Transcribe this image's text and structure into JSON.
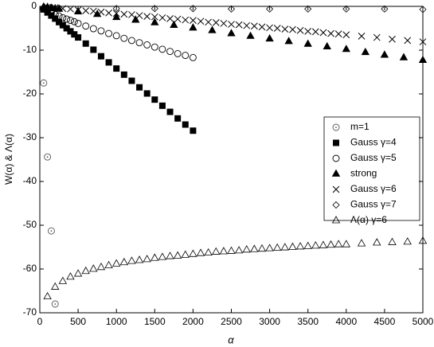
{
  "chart_data": {
    "type": "scatter",
    "xlabel": "α",
    "ylabel": "W(α) & Λ(α)",
    "xlim": [
      0,
      5000
    ],
    "ylim": [
      -70,
      0
    ],
    "xticks": [
      0,
      500,
      1000,
      1500,
      2000,
      2500,
      3000,
      3500,
      4000,
      4500,
      5000
    ],
    "yticks": [
      -70,
      -60,
      -50,
      -40,
      -30,
      -20,
      -10,
      0
    ],
    "grid": false,
    "legend": "right",
    "series": [
      {
        "name": "m=1",
        "marker": "circle-dot",
        "color": "#555555",
        "x": [
          50,
          100,
          150,
          200
        ],
        "values": [
          -17.5,
          -34.4,
          -51.3,
          -68
        ]
      },
      {
        "name": "Gauss γ=4",
        "marker": "square",
        "color": "#000000",
        "x": [
          50,
          100,
          150,
          200,
          250,
          300,
          350,
          400,
          450,
          500,
          600,
          700,
          800,
          900,
          1000,
          1100,
          1200,
          1300,
          1400,
          1500,
          1600,
          1700,
          1800,
          1900,
          2000
        ],
        "values": [
          -0.7,
          -1.4,
          -2.1,
          -2.8,
          -3.6,
          -4.3,
          -5,
          -5.7,
          -6.4,
          -7.1,
          -8.5,
          -9.9,
          -11.4,
          -12.8,
          -14.2,
          -15.6,
          -17,
          -18.5,
          -19.9,
          -21.3,
          -22.7,
          -24.1,
          -25.6,
          -27,
          -28.4
        ]
      },
      {
        "name": "Gauss γ=5",
        "marker": "circle",
        "color": "#000000",
        "x": [
          50,
          100,
          150,
          200,
          250,
          300,
          350,
          400,
          450,
          500,
          600,
          700,
          800,
          900,
          1000,
          1100,
          1200,
          1300,
          1400,
          1500,
          1600,
          1700,
          1800,
          1900,
          2000
        ],
        "values": [
          -0.6,
          -1.1,
          -1.5,
          -1.9,
          -2.2,
          -2.6,
          -2.9,
          -3.2,
          -3.5,
          -3.9,
          -4.5,
          -5.1,
          -5.6,
          -6.2,
          -6.7,
          -7.3,
          -7.8,
          -8.3,
          -8.8,
          -9.3,
          -9.8,
          -10.3,
          -10.8,
          -11.2,
          -11.7
        ]
      },
      {
        "name": "strong",
        "marker": "triangle",
        "color": "#000000",
        "x": [
          50,
          100,
          150,
          200,
          250,
          500,
          750,
          1000,
          1250,
          1500,
          1750,
          2000,
          2250,
          2500,
          2750,
          3000,
          3250,
          3500,
          3750,
          4000,
          4250,
          4500,
          4750,
          5000
        ],
        "values": [
          -0.1,
          -0.2,
          -0.4,
          -0.5,
          -0.6,
          -1.2,
          -1.8,
          -2.5,
          -3.1,
          -3.7,
          -4.3,
          -4.9,
          -5.5,
          -6.2,
          -6.8,
          -7.4,
          -8,
          -8.6,
          -9.2,
          -9.8,
          -10.5,
          -11.1,
          -11.7,
          -12.3
        ]
      },
      {
        "name": "Gauss γ=6",
        "marker": "x",
        "color": "#000000",
        "x": [
          100,
          200,
          300,
          400,
          500,
          600,
          700,
          800,
          900,
          1000,
          1100,
          1200,
          1300,
          1400,
          1500,
          1600,
          1700,
          1800,
          1900,
          2000,
          2100,
          2200,
          2300,
          2400,
          2500,
          2600,
          2700,
          2800,
          2900,
          3000,
          3100,
          3200,
          3300,
          3400,
          3500,
          3600,
          3700,
          3800,
          3900,
          4000,
          4200,
          4400,
          4600,
          4800,
          5000
        ],
        "values": [
          -0.2,
          -0.3,
          -0.5,
          -0.6,
          -0.8,
          -1,
          -1.1,
          -1.3,
          -1.5,
          -1.6,
          -1.8,
          -1.9,
          -2.1,
          -2.3,
          -2.4,
          -2.6,
          -2.8,
          -2.9,
          -3.1,
          -3.2,
          -3.4,
          -3.6,
          -3.7,
          -3.9,
          -4.1,
          -4.2,
          -4.4,
          -4.5,
          -4.7,
          -4.9,
          -5,
          -5.2,
          -5.3,
          -5.5,
          -5.7,
          -5.8,
          -6,
          -6.2,
          -6.3,
          -6.5,
          -6.8,
          -7.1,
          -7.5,
          -7.8,
          -8.1
        ]
      },
      {
        "name": "Gauss γ=7",
        "marker": "diamond",
        "color": "#000000",
        "x": [
          50,
          100,
          1000,
          1500,
          2000,
          2500,
          3000,
          3500,
          4000,
          4500,
          5000
        ],
        "values": [
          -0.3,
          -0.4,
          -0.5,
          -0.5,
          -0.5,
          -0.6,
          -0.6,
          -0.6,
          -0.6,
          -0.6,
          -0.7
        ]
      },
      {
        "name": "Λ(α) γ=6",
        "marker": "triangle-open",
        "color": "#000000",
        "x": [
          100,
          200,
          300,
          400,
          500,
          600,
          700,
          800,
          900,
          1000,
          1100,
          1200,
          1300,
          1400,
          1500,
          1600,
          1700,
          1800,
          1900,
          2000,
          2100,
          2200,
          2300,
          2400,
          2500,
          2600,
          2700,
          2800,
          2900,
          3000,
          3100,
          3200,
          3300,
          3400,
          3500,
          3600,
          3700,
          3800,
          3900,
          4000,
          4200,
          4400,
          4600,
          4800,
          5000
        ],
        "values": [
          -66.3,
          -64.1,
          -62.8,
          -61.8,
          -61.1,
          -60.5,
          -60,
          -59.6,
          -59.2,
          -58.8,
          -58.5,
          -58.2,
          -58,
          -57.8,
          -57.5,
          -57.3,
          -57.1,
          -57,
          -56.8,
          -56.6,
          -56.4,
          -56.3,
          -56.1,
          -56,
          -55.9,
          -55.8,
          -55.6,
          -55.5,
          -55.4,
          -55.3,
          -55.2,
          -55.1,
          -55,
          -54.9,
          -54.8,
          -54.7,
          -54.6,
          -54.5,
          -54.4,
          -54.4,
          -54.2,
          -54,
          -53.9,
          -53.8,
          -53.6
        ]
      }
    ]
  }
}
